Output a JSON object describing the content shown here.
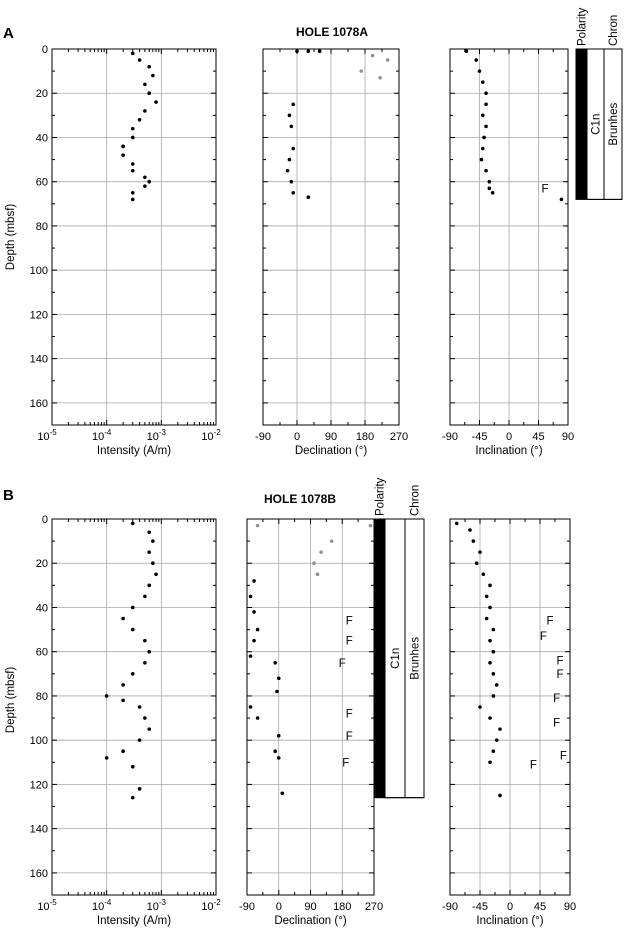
{
  "figure": {
    "panels": [
      {
        "id": "A",
        "label": "A",
        "hole": "HOLE 1078A"
      },
      {
        "id": "B",
        "label": "B",
        "hole": "HOLE 1078B"
      }
    ],
    "depth_axis_label": "Depth (mbsf)",
    "depth_ticks": [
      "0",
      "20",
      "40",
      "60",
      "80",
      "100",
      "120",
      "140",
      "160"
    ],
    "intensity_label": "Intensity (A/m)",
    "intensity_ticks": [
      {
        "base": "10",
        "exp": "-5"
      },
      {
        "base": "10",
        "exp": "-4"
      },
      {
        "base": "10",
        "exp": "-3"
      },
      {
        "base": "10",
        "exp": "-2"
      }
    ],
    "declination_label": "Declination (°)",
    "declination_ticks": [
      "-90",
      "0",
      "90",
      "180",
      "270"
    ],
    "inclination_label": "Inclination (°)",
    "inclination_ticks": [
      "-90",
      "-45",
      "0",
      "45",
      "90"
    ],
    "polarity_header": "Polarity",
    "chron_header": "Chron",
    "polarity_zone": "C1n",
    "chron_zone": "Brunhes",
    "flag": "F",
    "colors": {
      "points": "#000000",
      "points_alt": "#909090",
      "grid": "#a8a8a8",
      "normal_polarity": "#000000"
    }
  },
  "chart_data": [
    {
      "type": "scatter",
      "title": "HOLE 1078A",
      "panel": "A",
      "quantity": "Intensity",
      "xlabel": "Intensity (A/m)",
      "ylabel": "Depth (mbsf)",
      "xscale": "log",
      "xlim": [
        1e-05,
        0.01
      ],
      "ylim": [
        170,
        0
      ],
      "grid": true,
      "series": [
        {
          "points": [
            [
              0.0003,
              2
            ],
            [
              0.0004,
              5
            ],
            [
              0.0006,
              8
            ],
            [
              0.0007,
              12
            ],
            [
              0.0005,
              16
            ],
            [
              0.0006,
              20
            ],
            [
              0.0008,
              24
            ],
            [
              0.0005,
              28
            ],
            [
              0.0004,
              32
            ],
            [
              0.0003,
              36
            ],
            [
              0.0003,
              40
            ],
            [
              0.0002,
              44
            ],
            [
              0.0002,
              48
            ],
            [
              0.0003,
              52
            ],
            [
              0.0003,
              55
            ],
            [
              0.0005,
              58
            ],
            [
              0.0006,
              60
            ],
            [
              0.0005,
              62
            ],
            [
              0.0003,
              65
            ],
            [
              0.0003,
              68
            ]
          ]
        }
      ]
    },
    {
      "type": "scatter",
      "title": "HOLE 1078A",
      "panel": "A",
      "quantity": "Declination",
      "xlabel": "Declination (°)",
      "ylabel": "Depth (mbsf)",
      "xlim": [
        -90,
        270
      ],
      "ylim": [
        170,
        0
      ],
      "grid": true,
      "series": [
        {
          "points": [
            [
              0,
              1
            ],
            [
              30,
              1
            ],
            [
              60,
              1
            ],
            [
              -10,
              25
            ],
            [
              -20,
              30
            ],
            [
              -15,
              35
            ],
            [
              -10,
              45
            ],
            [
              -20,
              50
            ],
            [
              -25,
              55
            ],
            [
              -15,
              60
            ],
            [
              -10,
              65
            ],
            [
              30,
              67
            ]
          ]
        },
        {
          "points": [
            [
              200,
              3
            ],
            [
              240,
              5
            ],
            [
              170,
              10
            ],
            [
              220,
              13
            ]
          ]
        }
      ]
    },
    {
      "type": "scatter",
      "title": "HOLE 1078A",
      "panel": "A",
      "quantity": "Inclination",
      "xlabel": "Inclination (°)",
      "ylabel": "Depth (mbsf)",
      "xlim": [
        -90,
        90
      ],
      "ylim": [
        170,
        0
      ],
      "grid": true,
      "series": [
        {
          "points": [
            [
              -65,
              1
            ],
            [
              -50,
              5
            ],
            [
              -45,
              10
            ],
            [
              -40,
              15
            ],
            [
              -35,
              20
            ],
            [
              -35,
              25
            ],
            [
              -40,
              30
            ],
            [
              -35,
              35
            ],
            [
              -38,
              40
            ],
            [
              -40,
              45
            ],
            [
              -42,
              50
            ],
            [
              -35,
              55
            ],
            [
              -30,
              60
            ],
            [
              -30,
              63
            ],
            [
              -25,
              65
            ],
            [
              80,
              68
            ]
          ]
        }
      ],
      "annotations": [
        {
          "text": "F",
          "x": 55,
          "y": 63
        }
      ]
    },
    {
      "type": "scatter",
      "title": "HOLE 1078B",
      "panel": "B",
      "quantity": "Intensity",
      "xlabel": "Intensity (A/m)",
      "ylabel": "Depth (mbsf)",
      "xscale": "log",
      "xlim": [
        1e-05,
        0.01
      ],
      "ylim": [
        170,
        0
      ],
      "grid": true,
      "series": [
        {
          "points": [
            [
              0.0003,
              2
            ],
            [
              0.0006,
              6
            ],
            [
              0.0007,
              10
            ],
            [
              0.0006,
              15
            ],
            [
              0.0007,
              20
            ],
            [
              0.0008,
              25
            ],
            [
              0.0006,
              30
            ],
            [
              0.0005,
              35
            ],
            [
              0.0003,
              40
            ],
            [
              0.0002,
              45
            ],
            [
              0.0003,
              50
            ],
            [
              0.0005,
              55
            ],
            [
              0.0006,
              60
            ],
            [
              0.0005,
              65
            ],
            [
              0.0003,
              70
            ],
            [
              0.0002,
              75
            ],
            [
              0.0001,
              80
            ],
            [
              0.0002,
              82
            ],
            [
              0.0004,
              85
            ],
            [
              0.0005,
              90
            ],
            [
              0.0006,
              95
            ],
            [
              0.0004,
              100
            ],
            [
              0.0002,
              105
            ],
            [
              0.0001,
              108
            ],
            [
              0.0003,
              112
            ],
            [
              0.0004,
              122
            ],
            [
              0.0003,
              126
            ]
          ]
        }
      ]
    },
    {
      "type": "scatter",
      "title": "HOLE 1078B",
      "panel": "B",
      "quantity": "Declination",
      "xlabel": "Declination (°)",
      "ylabel": "Depth (mbsf)",
      "xlim": [
        -90,
        270
      ],
      "ylim": [
        170,
        0
      ],
      "grid": true,
      "series": [
        {
          "points": [
            [
              -70,
              28
            ],
            [
              -80,
              35
            ],
            [
              -70,
              42
            ],
            [
              -60,
              50
            ],
            [
              -70,
              55
            ],
            [
              -80,
              62
            ],
            [
              -10,
              65
            ],
            [
              0,
              72
            ],
            [
              -5,
              78
            ],
            [
              -80,
              85
            ],
            [
              -60,
              90
            ],
            [
              0,
              98
            ],
            [
              -10,
              105
            ],
            [
              0,
              108
            ],
            [
              10,
              124
            ]
          ]
        },
        {
          "points": [
            [
              -60,
              3
            ],
            [
              260,
              3
            ],
            [
              150,
              10
            ],
            [
              120,
              15
            ],
            [
              100,
              20
            ],
            [
              110,
              25
            ]
          ]
        }
      ],
      "annotations": [
        {
          "text": "F",
          "x": 200,
          "y": 46
        },
        {
          "text": "F",
          "x": 200,
          "y": 55
        },
        {
          "text": "F",
          "x": 180,
          "y": 65
        },
        {
          "text": "F",
          "x": 200,
          "y": 88
        },
        {
          "text": "F",
          "x": 200,
          "y": 98
        },
        {
          "text": "F",
          "x": 190,
          "y": 110
        }
      ]
    },
    {
      "type": "scatter",
      "title": "HOLE 1078B",
      "panel": "B",
      "quantity": "Inclination",
      "xlabel": "Inclination (°)",
      "ylabel": "Depth (mbsf)",
      "xlim": [
        -90,
        90
      ],
      "ylim": [
        170,
        0
      ],
      "grid": true,
      "series": [
        {
          "points": [
            [
              -80,
              2
            ],
            [
              -60,
              5
            ],
            [
              -55,
              10
            ],
            [
              -45,
              15
            ],
            [
              -50,
              20
            ],
            [
              -40,
              25
            ],
            [
              -30,
              30
            ],
            [
              -35,
              35
            ],
            [
              -30,
              40
            ],
            [
              -35,
              45
            ],
            [
              -25,
              50
            ],
            [
              -30,
              55
            ],
            [
              -25,
              60
            ],
            [
              -30,
              65
            ],
            [
              -25,
              70
            ],
            [
              -20,
              75
            ],
            [
              -25,
              80
            ],
            [
              -45,
              85
            ],
            [
              -30,
              90
            ],
            [
              -15,
              95
            ],
            [
              -20,
              100
            ],
            [
              -25,
              105
            ],
            [
              -30,
              110
            ],
            [
              -15,
              125
            ]
          ]
        }
      ],
      "annotations": [
        {
          "text": "F",
          "x": 60,
          "y": 46
        },
        {
          "text": "F",
          "x": 50,
          "y": 53
        },
        {
          "text": "F",
          "x": 75,
          "y": 64
        },
        {
          "text": "F",
          "x": 75,
          "y": 70
        },
        {
          "text": "F",
          "x": 70,
          "y": 81
        },
        {
          "text": "F",
          "x": 70,
          "y": 92
        },
        {
          "text": "F",
          "x": 80,
          "y": 107
        },
        {
          "text": "F",
          "x": 35,
          "y": 111
        }
      ]
    }
  ]
}
